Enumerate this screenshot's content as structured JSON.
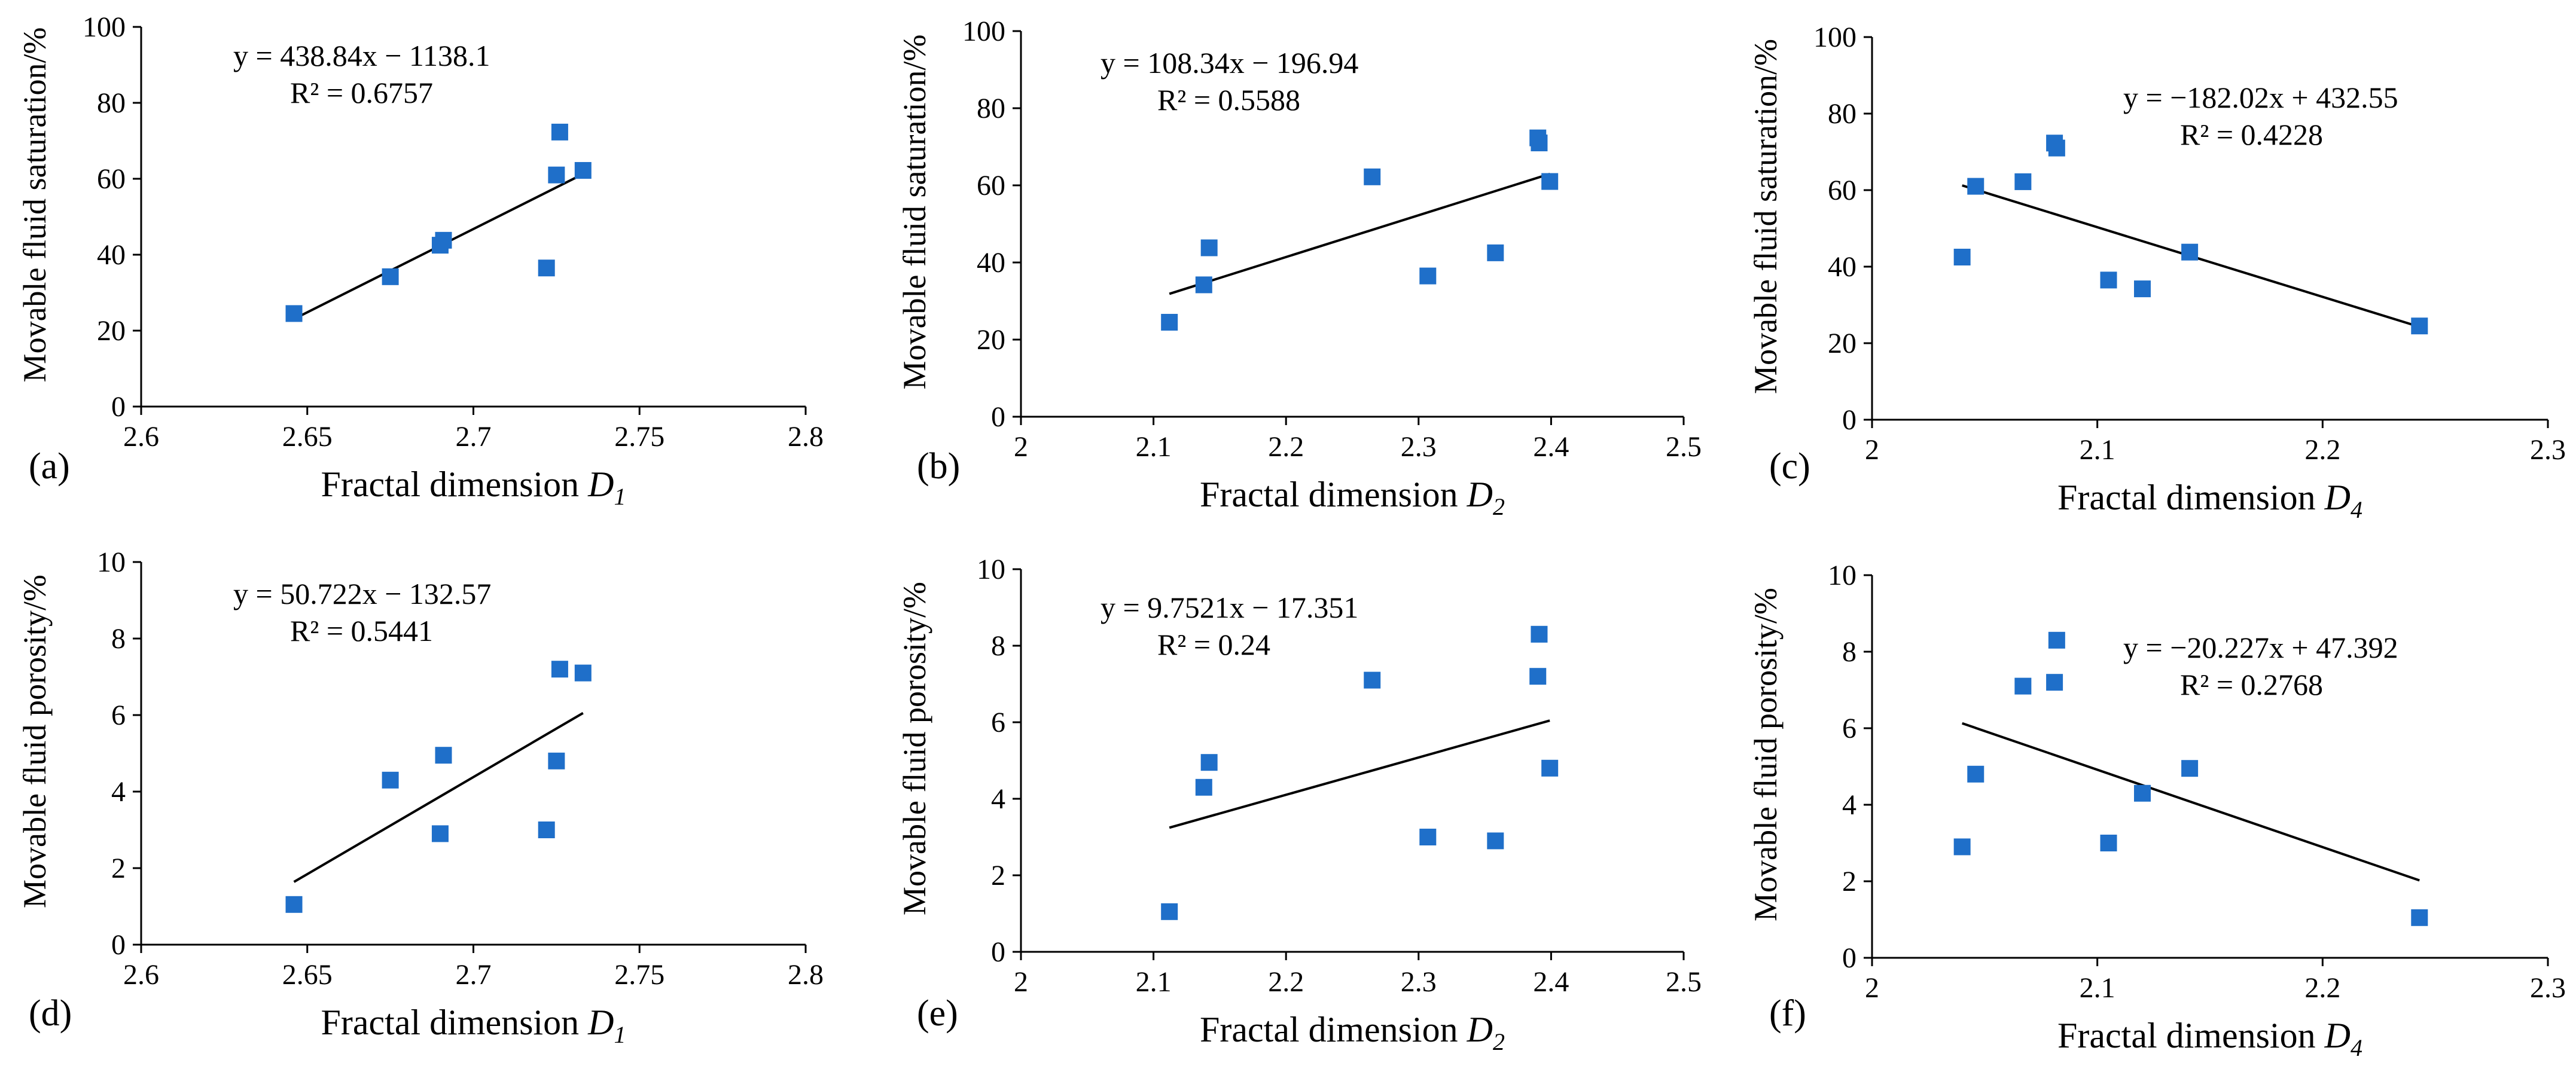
{
  "figure": {
    "colors": {
      "marker": "#1f6fc9",
      "trendline": "#000000",
      "axis": "#000000"
    }
  },
  "chart_data": [
    {
      "panel_label": "(a)",
      "type": "scatter",
      "title": "",
      "xlabel": "Fractal dimension ",
      "xlabel_sub": "D1",
      "ylabel": "Movable fluid saturation/%",
      "xlim": [
        2.6,
        2.8
      ],
      "ylim": [
        0,
        100
      ],
      "x_ticks": [
        "2.6",
        "2.65",
        "2.7",
        "2.75",
        "2.8"
      ],
      "y_ticks": [
        "0",
        "20",
        "40",
        "60",
        "80",
        "100"
      ],
      "x": [
        2.646,
        2.675,
        2.69,
        2.691,
        2.722,
        2.725,
        2.726,
        2.733
      ],
      "y": [
        24.5,
        34.2,
        42.5,
        43.8,
        36.5,
        61.0,
        72.3,
        62.2
      ],
      "trendline": {
        "slope": 438.84,
        "intercept": -1138.1,
        "x_range": [
          2.646,
          2.733
        ]
      },
      "annotations": [
        "y = 438.84x − 1138.1",
        "R² = 0.6757"
      ]
    },
    {
      "panel_label": "(b)",
      "type": "scatter",
      "title": "",
      "xlabel": "Fractal dimension ",
      "xlabel_sub": "D2",
      "ylabel": "Movable fluid saturation/%",
      "xlim": [
        2,
        2.5
      ],
      "ylim": [
        0,
        100
      ],
      "x_ticks": [
        "2",
        "2.1",
        "2.2",
        "2.3",
        "2.4",
        "2.5"
      ],
      "y_ticks": [
        "0",
        "20",
        "40",
        "60",
        "80",
        "100"
      ],
      "x": [
        2.112,
        2.138,
        2.142,
        2.265,
        2.307,
        2.358,
        2.39,
        2.391,
        2.399
      ],
      "y": [
        24.5,
        34.2,
        43.8,
        62.2,
        36.5,
        42.5,
        72.3,
        71.0,
        61.0
      ],
      "trendline": {
        "slope": 108.34,
        "intercept": -196.94,
        "x_range": [
          2.112,
          2.399
        ]
      },
      "annotations": [
        "y = 108.34x − 196.94",
        "R² = 0.5588"
      ]
    },
    {
      "panel_label": "(c)",
      "type": "scatter",
      "title": "",
      "xlabel": "Fractal dimension ",
      "xlabel_sub": "D4",
      "ylabel": "Movable fluid saturation/%",
      "xlim": [
        2,
        2.3
      ],
      "ylim": [
        0,
        100
      ],
      "x_ticks": [
        "2",
        "2.1",
        "2.2",
        "2.3"
      ],
      "y_ticks": [
        "0",
        "20",
        "40",
        "60",
        "80",
        "100"
      ],
      "x": [
        2.04,
        2.046,
        2.067,
        2.081,
        2.082,
        2.105,
        2.12,
        2.141,
        2.243
      ],
      "y": [
        42.5,
        61.0,
        62.2,
        72.3,
        71.0,
        36.5,
        34.2,
        43.8,
        24.5
      ],
      "trendline": {
        "slope": -182.02,
        "intercept": 432.55,
        "x_range": [
          2.04,
          2.243
        ]
      },
      "annotations": [
        "y = −182.02x + 432.55",
        "R² = 0.4228"
      ]
    },
    {
      "panel_label": "(d)",
      "type": "scatter",
      "title": "",
      "xlabel": "Fractal dimension ",
      "xlabel_sub": "D1",
      "ylabel": "Movable fluid porosity/%",
      "xlim": [
        2.6,
        2.8
      ],
      "ylim": [
        0,
        10
      ],
      "x_ticks": [
        "2.6",
        "2.65",
        "2.7",
        "2.75",
        "2.8"
      ],
      "y_ticks": [
        "0",
        "2",
        "4",
        "6",
        "8",
        "10"
      ],
      "x": [
        2.646,
        2.675,
        2.69,
        2.691,
        2.722,
        2.725,
        2.726,
        2.733
      ],
      "y": [
        1.05,
        4.3,
        2.9,
        4.95,
        3.0,
        4.8,
        7.2,
        7.1
      ],
      "trendline": {
        "slope": 50.722,
        "intercept": -132.57,
        "x_range": [
          2.646,
          2.733
        ]
      },
      "annotations": [
        "y = 50.722x − 132.57",
        "R² = 0.5441"
      ]
    },
    {
      "panel_label": "(e)",
      "type": "scatter",
      "title": "",
      "xlabel": "Fractal dimension ",
      "xlabel_sub": "D2",
      "ylabel": "Movable fluid porosity/%",
      "xlim": [
        2,
        2.5
      ],
      "ylim": [
        0,
        10
      ],
      "x_ticks": [
        "2",
        "2.1",
        "2.2",
        "2.3",
        "2.4",
        "2.5"
      ],
      "y_ticks": [
        "0",
        "2",
        "4",
        "6",
        "8",
        "10"
      ],
      "x": [
        2.112,
        2.138,
        2.142,
        2.265,
        2.307,
        2.358,
        2.39,
        2.391,
        2.399
      ],
      "y": [
        1.05,
        4.3,
        4.95,
        7.1,
        3.0,
        2.9,
        7.2,
        8.3,
        4.8
      ],
      "trendline": {
        "slope": 9.7521,
        "intercept": -17.351,
        "x_range": [
          2.112,
          2.399
        ]
      },
      "annotations": [
        "y = 9.7521x − 17.351",
        "R² = 0.24"
      ]
    },
    {
      "panel_label": "(f)",
      "type": "scatter",
      "title": "",
      "xlabel": "Fractal dimension ",
      "xlabel_sub": "D4",
      "ylabel": "Movable fluid porosity/%",
      "xlim": [
        2,
        2.3
      ],
      "ylim": [
        0,
        10
      ],
      "x_ticks": [
        "2",
        "2.1",
        "2.2",
        "2.3"
      ],
      "y_ticks": [
        "0",
        "2",
        "4",
        "6",
        "8",
        "10"
      ],
      "x": [
        2.04,
        2.046,
        2.067,
        2.081,
        2.082,
        2.105,
        2.12,
        2.141,
        2.243
      ],
      "y": [
        2.9,
        4.8,
        7.1,
        7.2,
        8.3,
        3.0,
        4.3,
        4.95,
        1.05
      ],
      "trendline": {
        "slope": -20.227,
        "intercept": 47.392,
        "x_range": [
          2.04,
          2.243
        ]
      },
      "annotations": [
        "y = −20.227x + 47.392",
        "R² = 0.2768"
      ]
    }
  ]
}
